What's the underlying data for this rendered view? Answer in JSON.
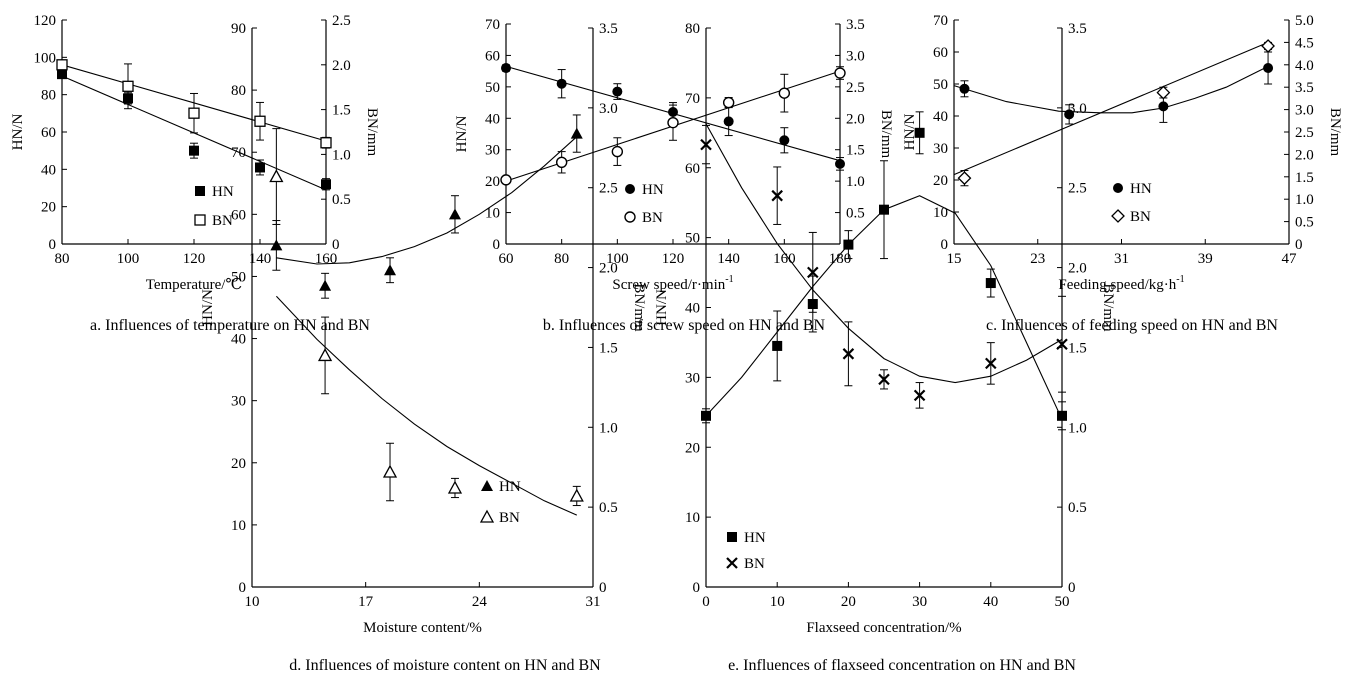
{
  "chart_data": [
    {
      "type": "scatter",
      "caption": "a. Influences of temperature on HN and BN",
      "xlabel": "Temperature/℃",
      "ylabel": "HN/N",
      "y2label": "BN/mm",
      "xlim": [
        80,
        160
      ],
      "ylim": [
        0,
        120
      ],
      "y2lim": [
        0,
        2.5
      ],
      "xticks": [
        80,
        100,
        120,
        140,
        160
      ],
      "yticks": [
        0,
        20,
        40,
        60,
        80,
        100,
        120
      ],
      "y2ticks": [
        "0",
        "0.5",
        "1.0",
        "1.5",
        "2.0",
        "2.5"
      ],
      "legend_position": "center",
      "series": [
        {
          "name": "HN",
          "axis": "left",
          "marker": "square-filled",
          "x": [
            80,
            100,
            120,
            140,
            160
          ],
          "y": [
            91,
            78,
            50,
            41,
            32
          ],
          "err": [
            2,
            3,
            4,
            4,
            3
          ],
          "fit": {
            "kind": "line",
            "x": [
              80,
              160
            ],
            "y": [
              90,
              29
            ]
          }
        },
        {
          "name": "BN",
          "axis": "right",
          "marker": "square-open",
          "x": [
            80,
            100,
            120,
            140,
            160
          ],
          "y": [
            2.0,
            1.76,
            1.46,
            1.37,
            1.13
          ],
          "err": [
            0.05,
            0.25,
            0.22,
            0.21,
            0.06
          ],
          "fit": {
            "kind": "line",
            "x": [
              80,
              160
            ],
            "y": [
              2.0,
              1.15
            ]
          }
        }
      ]
    },
    {
      "type": "scatter",
      "caption": "b. Influences of screw speed on HN and BN",
      "xlabel": "Screw speed/r·min",
      "xlabel_sup": "-1",
      "ylabel": "HN/N",
      "y2label": "BN/mm",
      "xlim": [
        60,
        180
      ],
      "ylim": [
        0,
        70
      ],
      "y2lim": [
        0,
        3.5
      ],
      "xticks": [
        60,
        80,
        100,
        120,
        140,
        160,
        180
      ],
      "yticks": [
        0,
        10,
        20,
        30,
        40,
        50,
        60,
        70
      ],
      "y2ticks": [
        "0",
        "0.5",
        "1.0",
        "1.5",
        "2.0",
        "2.5",
        "3.0",
        "3.5"
      ],
      "legend_position": "bottom-left",
      "series": [
        {
          "name": "HN",
          "axis": "left",
          "marker": "circle-filled",
          "x": [
            60,
            80,
            100,
            120,
            140,
            160,
            180
          ],
          "y": [
            56,
            51,
            48.5,
            42,
            39,
            33,
            25.5
          ],
          "err": [
            1,
            4.5,
            2.5,
            3,
            4.5,
            4,
            2
          ],
          "fit": {
            "kind": "line",
            "x": [
              60,
              180
            ],
            "y": [
              56.5,
              26.5
            ]
          }
        },
        {
          "name": "BN",
          "axis": "right",
          "marker": "circle-open",
          "x": [
            60,
            80,
            100,
            120,
            140,
            160,
            180
          ],
          "y": [
            1.02,
            1.3,
            1.47,
            1.93,
            2.25,
            2.4,
            2.72
          ],
          "err": [
            0.05,
            0.17,
            0.22,
            0.28,
            0.08,
            0.3,
            0.1
          ],
          "fit": {
            "kind": "line",
            "x": [
              60,
              180
            ],
            "y": [
              1.0,
              2.75
            ]
          }
        }
      ]
    },
    {
      "type": "scatter",
      "caption": "c. Influences of feeding speed on HN and BN",
      "xlabel": "Feeding speed/kg·h",
      "xlabel_sup": "-1",
      "ylabel": "HN/N",
      "y2label": "BN/mm",
      "xlim": [
        15,
        47
      ],
      "ylim": [
        0,
        70
      ],
      "y2lim": [
        0,
        5.0
      ],
      "xticks": [
        15,
        23,
        31,
        39,
        47
      ],
      "yticks": [
        0,
        10,
        20,
        30,
        40,
        50,
        60,
        70
      ],
      "y2ticks": [
        "0",
        "0.5",
        "1.0",
        "1.5",
        "2.0",
        "2.5",
        "3.0",
        "3.5",
        "4.0",
        "4.5",
        "5.0"
      ],
      "legend_position": "bottom-right",
      "series": [
        {
          "name": "HN",
          "axis": "left",
          "marker": "circle-filled",
          "x": [
            16,
            26,
            35,
            45
          ],
          "y": [
            48.5,
            40.5,
            43,
            55
          ],
          "err": [
            2.5,
            3,
            5,
            5
          ],
          "fit": {
            "kind": "curve",
            "x": [
              15,
              20,
              25,
              29,
              32,
              35,
              38,
              41,
              45
            ],
            "y": [
              49.5,
              44.5,
              41.5,
              41,
              41,
              42.5,
              45.5,
              49,
              55.5
            ]
          }
        },
        {
          "name": "BN",
          "axis": "right",
          "marker": "diamond-open",
          "x": [
            16,
            35,
            45
          ],
          "y": [
            1.47,
            3.38,
            4.42
          ],
          "err": [
            0.17,
            0.12,
            0.08
          ],
          "fit": {
            "kind": "line",
            "x": [
              15,
              45
            ],
            "y": [
              1.55,
              4.5
            ]
          }
        }
      ]
    },
    {
      "type": "scatter",
      "caption": "d. Influences of moisture content on HN and BN",
      "xlabel": "Moisture content/%",
      "ylabel": "HN/N",
      "y2label": "BN/mm",
      "xlim": [
        10,
        31
      ],
      "ylim": [
        0,
        90
      ],
      "y2lim": [
        0,
        3.5
      ],
      "xticks": [
        10,
        17,
        24,
        31
      ],
      "yticks": [
        0,
        10,
        20,
        30,
        40,
        50,
        60,
        70,
        80,
        90
      ],
      "y2ticks": [
        "0",
        "0.5",
        "1.0",
        "1.5",
        "2.0",
        "2.5",
        "3.0",
        "3.5"
      ],
      "legend_position": "right",
      "series": [
        {
          "name": "HN",
          "axis": "left",
          "marker": "triangle-filled",
          "x": [
            11.5,
            14.5,
            18.5,
            22.5,
            30
          ],
          "y": [
            55,
            48.5,
            51,
            60,
            73
          ],
          "err": [
            4,
            2,
            2,
            3,
            3
          ],
          "fit": {
            "kind": "curve",
            "x": [
              11.5,
              14,
              16,
              18,
              20,
              22,
              24,
              26,
              28,
              30
            ],
            "y": [
              53,
              52,
              52.2,
              53.2,
              54.8,
              57,
              60,
              63.5,
              67.8,
              72.5
            ]
          }
        },
        {
          "name": "BN",
          "axis": "right",
          "marker": "triangle-open",
          "x": [
            11.5,
            14.5,
            18.5,
            22.5,
            30
          ],
          "y": [
            2.57,
            1.45,
            0.72,
            0.62,
            0.57
          ],
          "err": [
            0.3,
            0.24,
            0.18,
            0.06,
            0.06
          ],
          "fit": {
            "kind": "curve",
            "x": [
              11.5,
              14,
              16,
              18,
              20,
              22,
              24,
              26,
              28,
              30
            ],
            "y": [
              1.82,
              1.55,
              1.36,
              1.18,
              1.02,
              0.88,
              0.76,
              0.65,
              0.54,
              0.45
            ]
          }
        }
      ]
    },
    {
      "type": "scatter",
      "caption": "e. Influences of flaxseed concentration on HN and BN",
      "xlabel": "Flaxseed concentration/%",
      "ylabel": "HN/N",
      "y2label": "BN/mm",
      "xlim": [
        0,
        50
      ],
      "ylim": [
        0,
        80
      ],
      "y2lim": [
        0,
        3.5
      ],
      "xticks": [
        0,
        10,
        20,
        30,
        40,
        50
      ],
      "yticks": [
        0,
        10,
        20,
        30,
        40,
        50,
        60,
        70,
        80
      ],
      "y2ticks": [
        "0",
        "0.5",
        "1.0",
        "1.5",
        "2.0",
        "2.5",
        "3.0",
        "3.5"
      ],
      "legend_position": "bottom-left",
      "series": [
        {
          "name": "HN",
          "axis": "left",
          "marker": "square-filled",
          "x": [
            0,
            10,
            15,
            20,
            25,
            30,
            40,
            50
          ],
          "y": [
            24.5,
            34.5,
            40.5,
            49,
            54,
            65,
            43.5,
            24.5
          ],
          "err": [
            1,
            5,
            4,
            2,
            7,
            3,
            2,
            2
          ],
          "fit": {
            "kind": "curve",
            "x": [
              0,
              5,
              10,
              15,
              20,
              25,
              30,
              35,
              40,
              45,
              50
            ],
            "y": [
              24.5,
              30,
              36.5,
              43,
              49,
              54,
              56,
              53.5,
              46,
              35,
              24
            ]
          }
        },
        {
          "name": "BN",
          "axis": "right",
          "marker": "cross",
          "x": [
            0,
            10,
            15,
            20,
            25,
            30,
            40,
            50
          ],
          "y": [
            2.77,
            2.45,
            1.97,
            1.46,
            1.3,
            1.2,
            1.4,
            1.52
          ],
          "err": [
            0.12,
            0.18,
            0.25,
            0.2,
            0.06,
            0.08,
            0.13,
            0.3
          ],
          "fit": {
            "kind": "curve",
            "x": [
              0,
              5,
              10,
              15,
              20,
              25,
              30,
              35,
              40,
              45,
              50
            ],
            "y": [
              2.9,
              2.5,
              2.15,
              1.86,
              1.62,
              1.43,
              1.32,
              1.28,
              1.32,
              1.42,
              1.55
            ]
          }
        }
      ]
    }
  ]
}
